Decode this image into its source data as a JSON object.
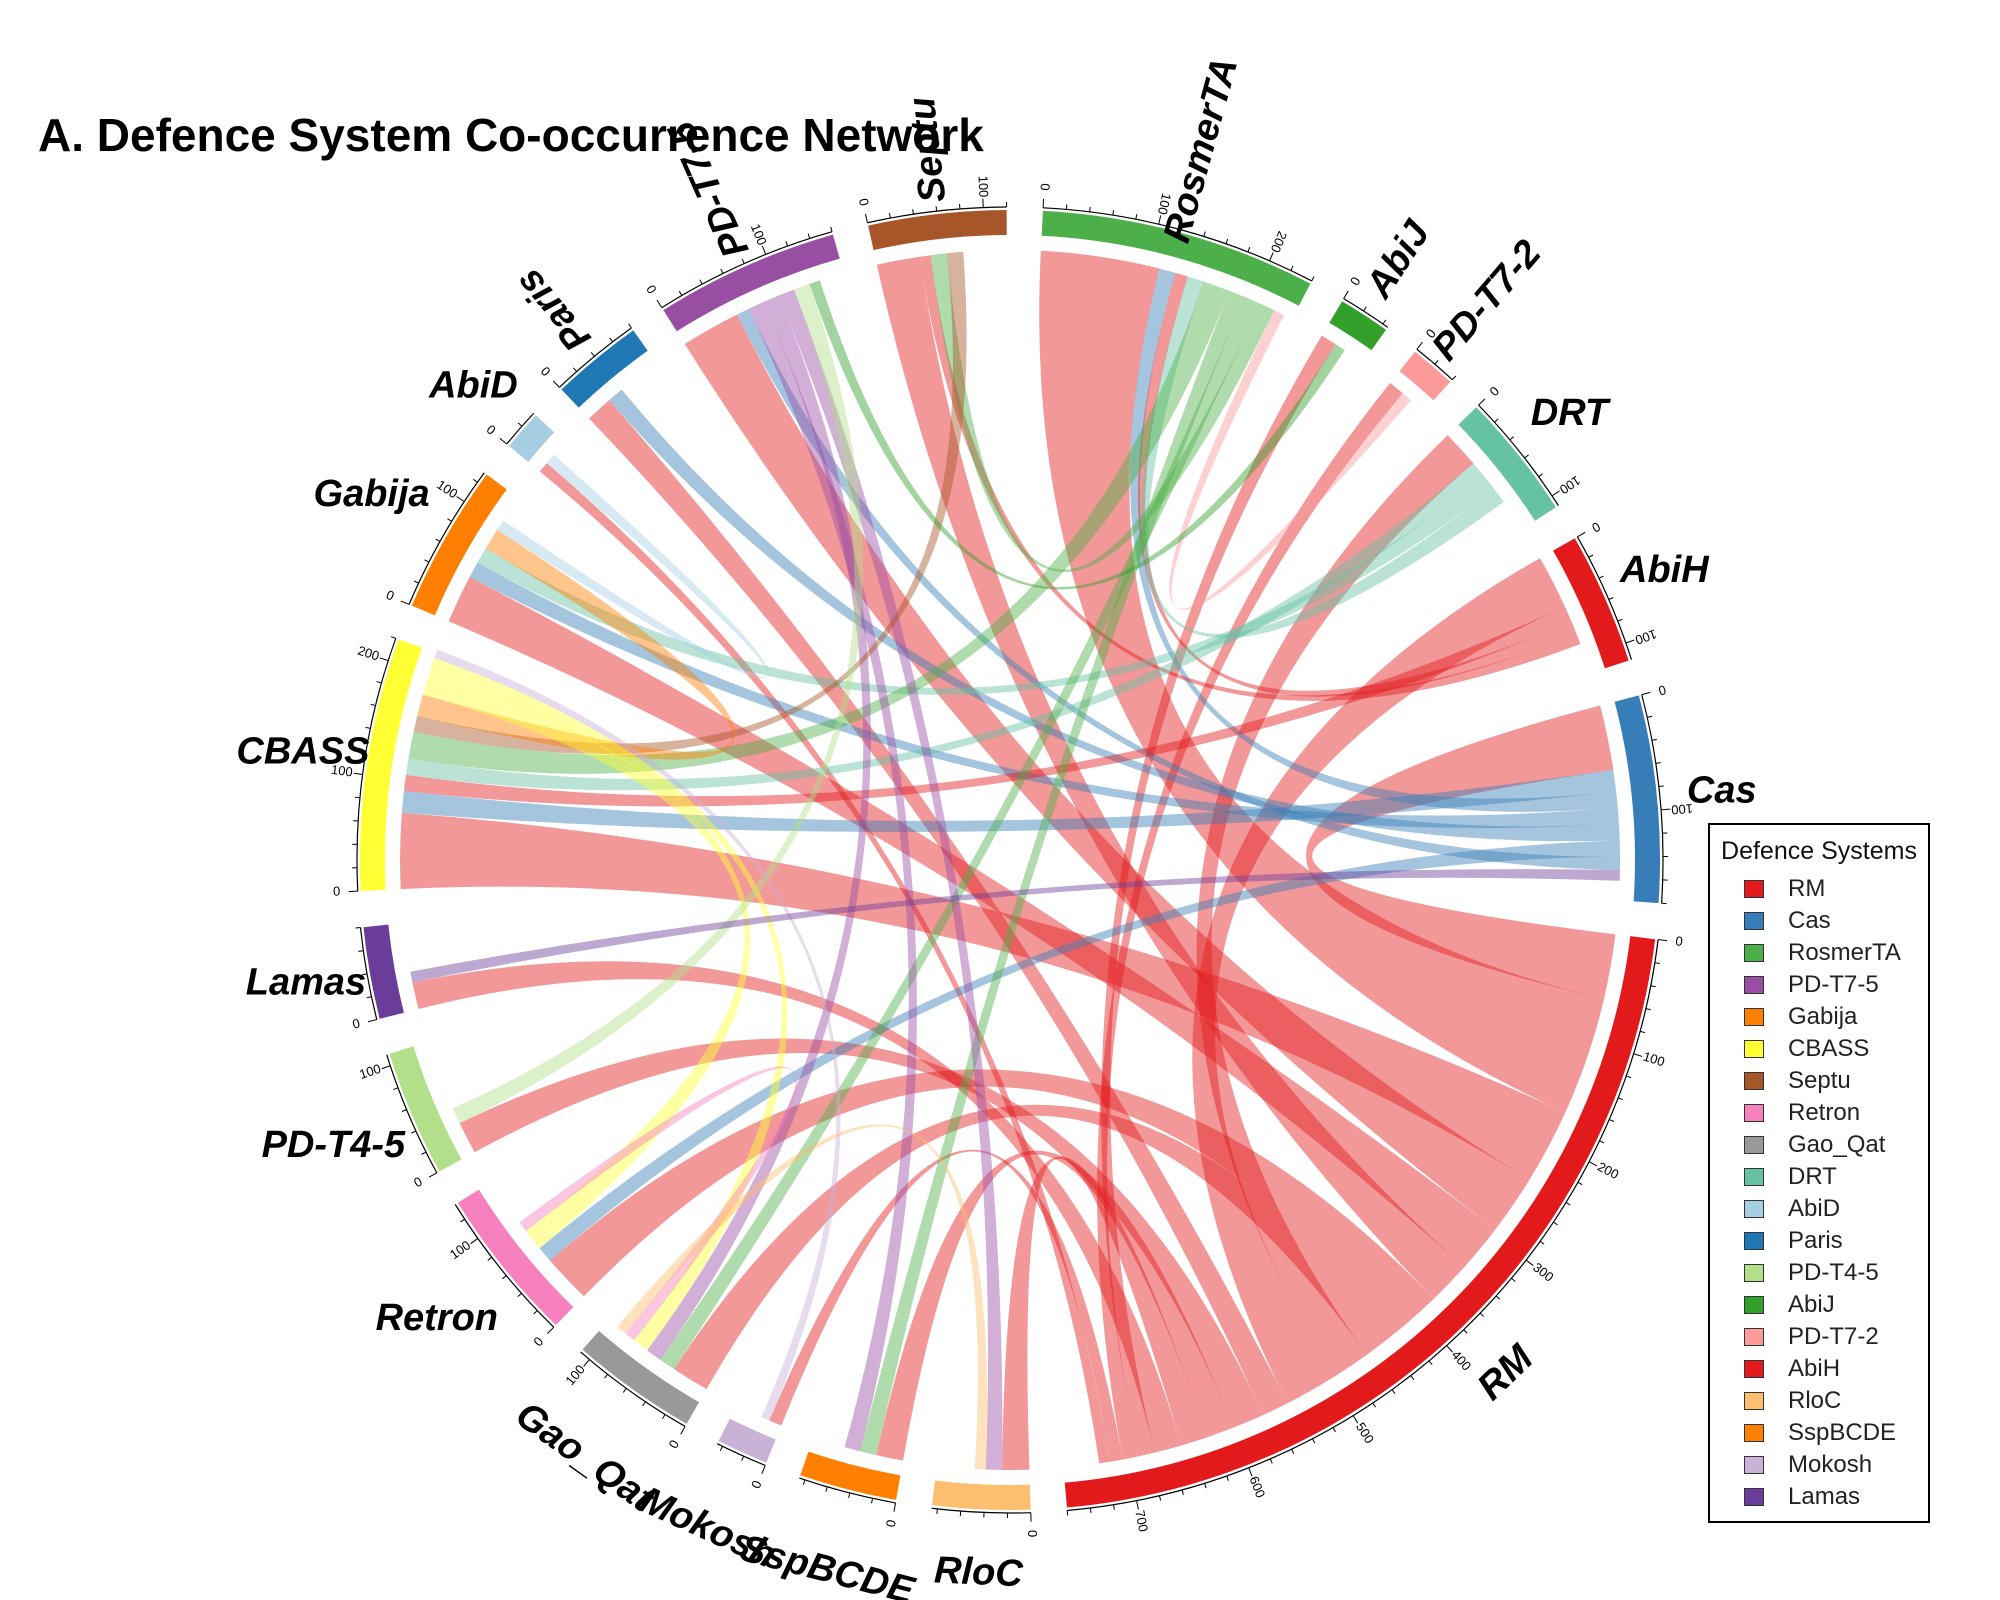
{
  "title": "A. Defence System Co-occurrence Network",
  "legend": {
    "title": "Defence Systems",
    "items": [
      {
        "label": "RM",
        "color": "#e31a1c"
      },
      {
        "label": "Cas",
        "color": "#377eb8"
      },
      {
        "label": "RosmerTA",
        "color": "#4daf4a"
      },
      {
        "label": "PD-T7-5",
        "color": "#984ea3"
      },
      {
        "label": "Gabija",
        "color": "#ff7f00"
      },
      {
        "label": "CBASS",
        "color": "#ffff33"
      },
      {
        "label": "Septu",
        "color": "#a65628"
      },
      {
        "label": "Retron",
        "color": "#f781bf"
      },
      {
        "label": "Gao_Qat",
        "color": "#999999"
      },
      {
        "label": "DRT",
        "color": "#66c2a5"
      },
      {
        "label": "AbiD",
        "color": "#a6cee3"
      },
      {
        "label": "Paris",
        "color": "#1f78b4"
      },
      {
        "label": "PD-T4-5",
        "color": "#b2df8a"
      },
      {
        "label": "AbiJ",
        "color": "#33a02c"
      },
      {
        "label": "PD-T7-2",
        "color": "#fb9a99"
      },
      {
        "label": "AbiH",
        "color": "#e31a1c"
      },
      {
        "label": "RloC",
        "color": "#fdbf6f"
      },
      {
        "label": "SspBCDE",
        "color": "#ff7f00"
      },
      {
        "label": "Mokosh",
        "color": "#cab2d6"
      },
      {
        "label": "Lamas",
        "color": "#6a3d9a"
      }
    ]
  },
  "chart_data": {
    "type": "chord",
    "title": "A. Defence System Co-occurrence Network",
    "legend_title": "Defence Systems",
    "legend_position": "right",
    "sectors": [
      {
        "name": "RM",
        "total": 760,
        "color": "#e31a1c",
        "ticks": [
          0,
          100,
          200,
          300,
          400,
          500,
          600,
          700
        ]
      },
      {
        "name": "Cas",
        "total": 180,
        "color": "#377eb8",
        "ticks": [
          0,
          100
        ]
      },
      {
        "name": "AbiH",
        "total": 115,
        "color": "#e31a1c",
        "ticks": [
          0,
          100
        ]
      },
      {
        "name": "DRT",
        "total": 110,
        "color": "#66c2a5",
        "ticks": [
          0,
          100
        ]
      },
      {
        "name": "PD-T7-2",
        "total": 40,
        "color": "#fb9a99",
        "ticks": [
          0
        ]
      },
      {
        "name": "AbiJ",
        "total": 45,
        "color": "#33a02c",
        "ticks": [
          0
        ]
      },
      {
        "name": "RosmerTA",
        "total": 240,
        "color": "#4daf4a",
        "ticks": [
          0,
          100,
          200
        ]
      },
      {
        "name": "Septu",
        "total": 120,
        "color": "#a65628",
        "ticks": [
          0,
          100
        ]
      },
      {
        "name": "PD-T7-5",
        "total": 160,
        "color": "#984ea3",
        "ticks": [
          0,
          100
        ]
      },
      {
        "name": "Paris",
        "total": 80,
        "color": "#1f78b4",
        "ticks": [
          0
        ]
      },
      {
        "name": "AbiD",
        "total": 35,
        "color": "#a6cee3",
        "ticks": [
          0
        ]
      },
      {
        "name": "Gabija",
        "total": 130,
        "color": "#ff7f00",
        "ticks": [
          0,
          100
        ]
      },
      {
        "name": "CBASS",
        "total": 220,
        "color": "#ffff33",
        "ticks": [
          0,
          100,
          200
        ]
      },
      {
        "name": "Lamas",
        "total": 80,
        "color": "#6a3d9a",
        "ticks": [
          0
        ]
      },
      {
        "name": "PD-T4-5",
        "total": 110,
        "color": "#b2df8a",
        "ticks": [
          0,
          100
        ]
      },
      {
        "name": "Retron",
        "total": 135,
        "color": "#f781bf",
        "ticks": [
          0,
          100
        ]
      },
      {
        "name": "Gao_Qat",
        "total": 110,
        "color": "#999999",
        "ticks": [
          0,
          100
        ]
      },
      {
        "name": "Mokosh",
        "total": 45,
        "color": "#cab2d6",
        "ticks": [
          0
        ]
      },
      {
        "name": "SspBCDE",
        "total": 85,
        "color": "#ff7f00",
        "ticks": [
          0
        ]
      },
      {
        "name": "RloC",
        "total": 85,
        "color": "#fdbf6f",
        "ticks": [
          0
        ]
      }
    ],
    "links": [
      {
        "source": "RM",
        "target": "Cas",
        "value": 60
      },
      {
        "source": "RM",
        "target": "RosmerTA",
        "value": 110
      },
      {
        "source": "RM",
        "target": "CBASS",
        "value": 70
      },
      {
        "source": "RM",
        "target": "PD-T7-5",
        "value": 55
      },
      {
        "source": "RM",
        "target": "Gabija",
        "value": 45
      },
      {
        "source": "RM",
        "target": "Septu",
        "value": 40
      },
      {
        "source": "RM",
        "target": "Retron",
        "value": 45
      },
      {
        "source": "RM",
        "target": "Gao_Qat",
        "value": 35
      },
      {
        "source": "RM",
        "target": "DRT",
        "value": 35
      },
      {
        "source": "RM",
        "target": "AbiH",
        "value": 50
      },
      {
        "source": "RM",
        "target": "Paris",
        "value": 25
      },
      {
        "source": "RM",
        "target": "PD-T4-5",
        "value": 30
      },
      {
        "source": "RM",
        "target": "SspBCDE",
        "value": 25
      },
      {
        "source": "RM",
        "target": "RloC",
        "value": 25
      },
      {
        "source": "RM",
        "target": "Lamas",
        "value": 25
      },
      {
        "source": "RM",
        "target": "AbiJ",
        "value": 15
      },
      {
        "source": "RM",
        "target": "PD-T7-2",
        "value": 15
      },
      {
        "source": "RM",
        "target": "Mokosh",
        "value": 12
      },
      {
        "source": "RM",
        "target": "AbiD",
        "value": 10
      },
      {
        "source": "Cas",
        "target": "CBASS",
        "value": 20
      },
      {
        "source": "Cas",
        "target": "RosmerTA",
        "value": 15
      },
      {
        "source": "Cas",
        "target": "Gabija",
        "value": 15
      },
      {
        "source": "Cas",
        "target": "Paris",
        "value": 15
      },
      {
        "source": "Cas",
        "target": "Retron",
        "value": 15
      },
      {
        "source": "Cas",
        "target": "PD-T7-5",
        "value": 12
      },
      {
        "source": "AbiH",
        "target": "CBASS",
        "value": 15
      },
      {
        "source": "AbiH",
        "target": "RosmerTA",
        "value": 12
      },
      {
        "source": "AbiH",
        "target": "Septu",
        "value": 10
      },
      {
        "source": "DRT",
        "target": "CBASS",
        "value": 15
      },
      {
        "source": "DRT",
        "target": "Gabija",
        "value": 15
      },
      {
        "source": "DRT",
        "target": "RosmerTA",
        "value": 15
      },
      {
        "source": "RosmerTA",
        "target": "CBASS",
        "value": 25
      },
      {
        "source": "RosmerTA",
        "target": "SspBCDE",
        "value": 15
      },
      {
        "source": "RosmerTA",
        "target": "Gao_Qat",
        "value": 15
      },
      {
        "source": "RosmerTA",
        "target": "Septu",
        "value": 15
      },
      {
        "source": "PD-T7-5",
        "target": "SspBCDE",
        "value": 15
      },
      {
        "source": "PD-T7-5",
        "target": "Gao_Qat",
        "value": 15
      },
      {
        "source": "PD-T7-5",
        "target": "RloC",
        "value": 15
      },
      {
        "source": "Septu",
        "target": "CBASS",
        "value": 15
      },
      {
        "source": "Gabija",
        "target": "CBASS",
        "value": 20
      },
      {
        "source": "CBASS",
        "target": "Retron",
        "value": 20
      },
      {
        "source": "CBASS",
        "target": "Gao_Qat",
        "value": 15
      },
      {
        "source": "PD-T4-5",
        "target": "PD-T7-5",
        "value": 15
      },
      {
        "source": "Retron",
        "target": "Gao_Qat",
        "value": 10
      },
      {
        "source": "Mokosh",
        "target": "CBASS",
        "value": 8
      },
      {
        "source": "RloC",
        "target": "Gao_Qat",
        "value": 10
      },
      {
        "source": "PD-T7-2",
        "target": "RosmerTA",
        "value": 10
      },
      {
        "source": "AbiJ",
        "target": "PD-T7-5",
        "value": 10
      },
      {
        "source": "AbiD",
        "target": "Gabija",
        "value": 10
      },
      {
        "source": "Lamas",
        "target": "Cas",
        "value": 10
      }
    ]
  }
}
